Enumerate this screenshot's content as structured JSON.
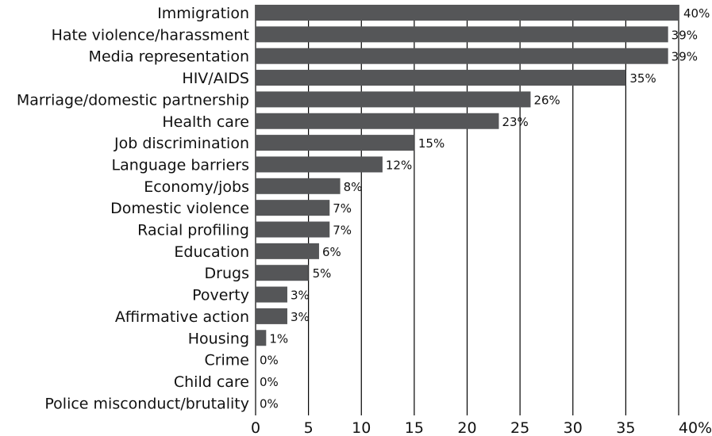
{
  "chart_data": {
    "type": "bar",
    "orientation": "horizontal",
    "categories": [
      "Immigration",
      "Hate violence/harassment",
      "Media representation",
      "HIV/AIDS",
      "Marriage/domestic partnership",
      "Health care",
      "Job discrimination",
      "Language barriers",
      "Economy/jobs",
      "Domestic violence",
      "Racial profiling",
      "Education",
      "Drugs",
      "Poverty",
      "Affirmative action",
      "Housing",
      "Crime",
      "Child care",
      "Police misconduct/brutality"
    ],
    "values": [
      40,
      39,
      39,
      35,
      26,
      23,
      15,
      12,
      8,
      7,
      7,
      6,
      5,
      3,
      3,
      1,
      0,
      0,
      0
    ],
    "value_labels": [
      "40%",
      "39%",
      "39%",
      "35%",
      "26%",
      "23%",
      "15%",
      "12%",
      "8%",
      "7%",
      "7%",
      "6%",
      "5%",
      "3%",
      "3%",
      "1%",
      "0%",
      "0%",
      "0%"
    ],
    "xlim": [
      0,
      40
    ],
    "x_ticks": [
      0,
      5,
      10,
      15,
      20,
      25,
      30,
      35,
      40
    ],
    "x_tick_labels": [
      "0",
      "5",
      "10",
      "15",
      "20",
      "25",
      "30",
      "35",
      "40%"
    ],
    "grid": "vertical",
    "bar_color": "#555658",
    "grid_color": "#000000",
    "title": "",
    "xlabel": "",
    "ylabel": ""
  }
}
